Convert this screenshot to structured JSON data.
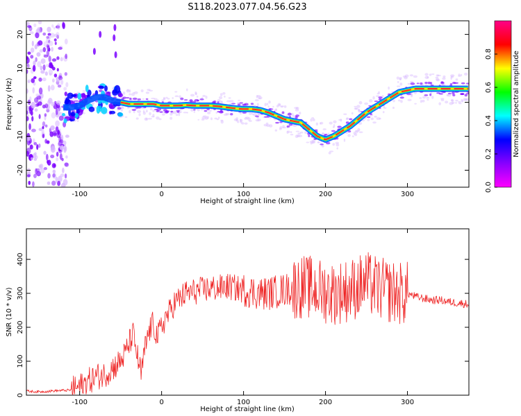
{
  "figure": {
    "title": "S118.2023.077.04.56.G23"
  },
  "chart_data": [
    {
      "type": "heatmap",
      "title": "",
      "xlabel": "Height of straight line (km)",
      "ylabel": "Frequency (Hz)",
      "xlim": [
        -165,
        375
      ],
      "ylim": [
        -25,
        24
      ],
      "xticks": [
        -100,
        0,
        100,
        200,
        300
      ],
      "yticks": [
        -20,
        -10,
        0,
        10,
        20
      ],
      "grid": false,
      "colorbar": {
        "label": "Normalized spectral amplitude",
        "range": [
          0,
          1
        ],
        "ticks": [
          0.0,
          0.2,
          0.4,
          0.6,
          0.8
        ],
        "colors": [
          "#ff00ff",
          "#8800ff",
          "#0000ff",
          "#00ffff",
          "#00ff00",
          "#ffff00",
          "#ff0000",
          "#ff0088"
        ]
      },
      "ridge": {
        "x": [
          -120,
          -110,
          -100,
          -90,
          -80,
          -70,
          -60,
          -50,
          -40,
          -30,
          -20,
          -10,
          0,
          10,
          20,
          30,
          40,
          50,
          60,
          70,
          80,
          90,
          100,
          110,
          120,
          130,
          140,
          150,
          160,
          170,
          180,
          190,
          200,
          210,
          220,
          230,
          240,
          250,
          260,
          270,
          280,
          290,
          300,
          310,
          320,
          330,
          340,
          350,
          360,
          375
        ],
        "y": [
          -1.5,
          -1.5,
          -1,
          0.5,
          1.5,
          1.5,
          0.5,
          0,
          -0.5,
          -0.5,
          -0.5,
          -0.5,
          -1,
          -1,
          -1,
          -0.8,
          -1,
          -1,
          -1,
          -1.2,
          -1.5,
          -1.8,
          -2,
          -2,
          -2.3,
          -3,
          -4,
          -5,
          -5.5,
          -6,
          -8,
          -10,
          -11,
          -10,
          -8.5,
          -7,
          -5,
          -3,
          -1.5,
          0,
          1.5,
          3,
          3.5,
          4,
          4,
          4,
          4,
          4,
          4,
          4
        ]
      },
      "colors": {
        "ridge_core": "#ff2a2a",
        "ridge_mid": "#00e07a",
        "ridge_outer": "#0050ff",
        "halo": "#7a00ff",
        "haze": "#d8b8ff"
      }
    },
    {
      "type": "line",
      "title": "",
      "xlabel": "Height of straight line (km)",
      "ylabel": "SNR (10 * v/v)",
      "xlim": [
        -165,
        375
      ],
      "ylim": [
        0,
        490
      ],
      "xticks": [
        -100,
        0,
        100,
        200,
        300
      ],
      "yticks": [
        0,
        100,
        200,
        300,
        400
      ],
      "grid": false,
      "series": [
        {
          "color": "#ee2222",
          "x": [
            -165,
            -150,
            -130,
            -110,
            -100,
            -90,
            -80,
            -70,
            -60,
            -50,
            -45,
            -40,
            -35,
            -30,
            -25,
            -20,
            -15,
            -10,
            -5,
            0,
            5,
            10,
            15,
            20,
            30,
            40,
            50,
            60,
            70,
            80,
            90,
            100,
            110,
            120,
            130,
            140,
            150,
            160,
            170,
            180,
            190,
            200,
            210,
            220,
            230,
            240,
            250,
            260,
            270,
            280,
            290,
            300,
            310,
            320,
            330,
            340,
            350,
            360,
            375
          ],
          "values": [
            12,
            10,
            13,
            15,
            25,
            40,
            55,
            60,
            80,
            100,
            120,
            150,
            180,
            120,
            60,
            140,
            190,
            210,
            170,
            200,
            230,
            245,
            270,
            280,
            300,
            305,
            310,
            315,
            315,
            320,
            315,
            310,
            305,
            300,
            300,
            305,
            310,
            315,
            320,
            318,
            310,
            305,
            300,
            305,
            310,
            320,
            330,
            320,
            310,
            305,
            300,
            300,
            290,
            285,
            280,
            280,
            275,
            272,
            268
          ]
        }
      ]
    }
  ]
}
